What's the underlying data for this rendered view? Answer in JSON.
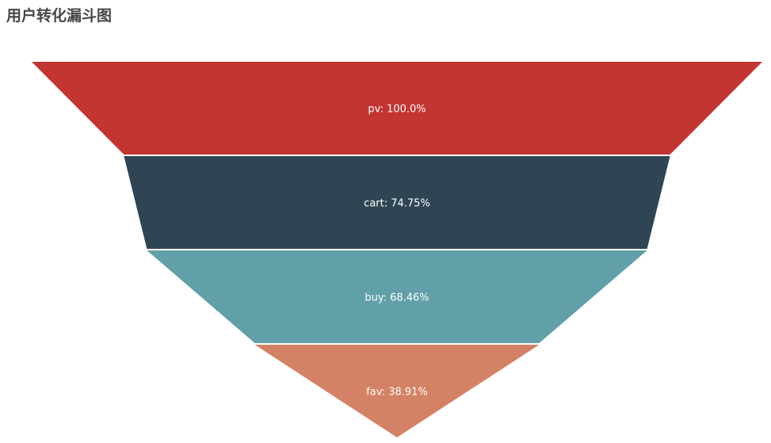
{
  "chart_data": {
    "type": "funnel",
    "title": "用户转化漏斗图",
    "categories": [
      "pv",
      "cart",
      "buy",
      "fav"
    ],
    "values": [
      100.0,
      74.75,
      68.46,
      38.91
    ],
    "labels": [
      "pv: 100.0%",
      "cart: 74.75%",
      "buy: 68.46%",
      "fav: 38.91%"
    ],
    "unit": "%",
    "sort": "descending",
    "legend": "none",
    "grid": false,
    "colors": [
      "#c23531",
      "#2f4554",
      "#61a0a8",
      "#d48265"
    ]
  }
}
